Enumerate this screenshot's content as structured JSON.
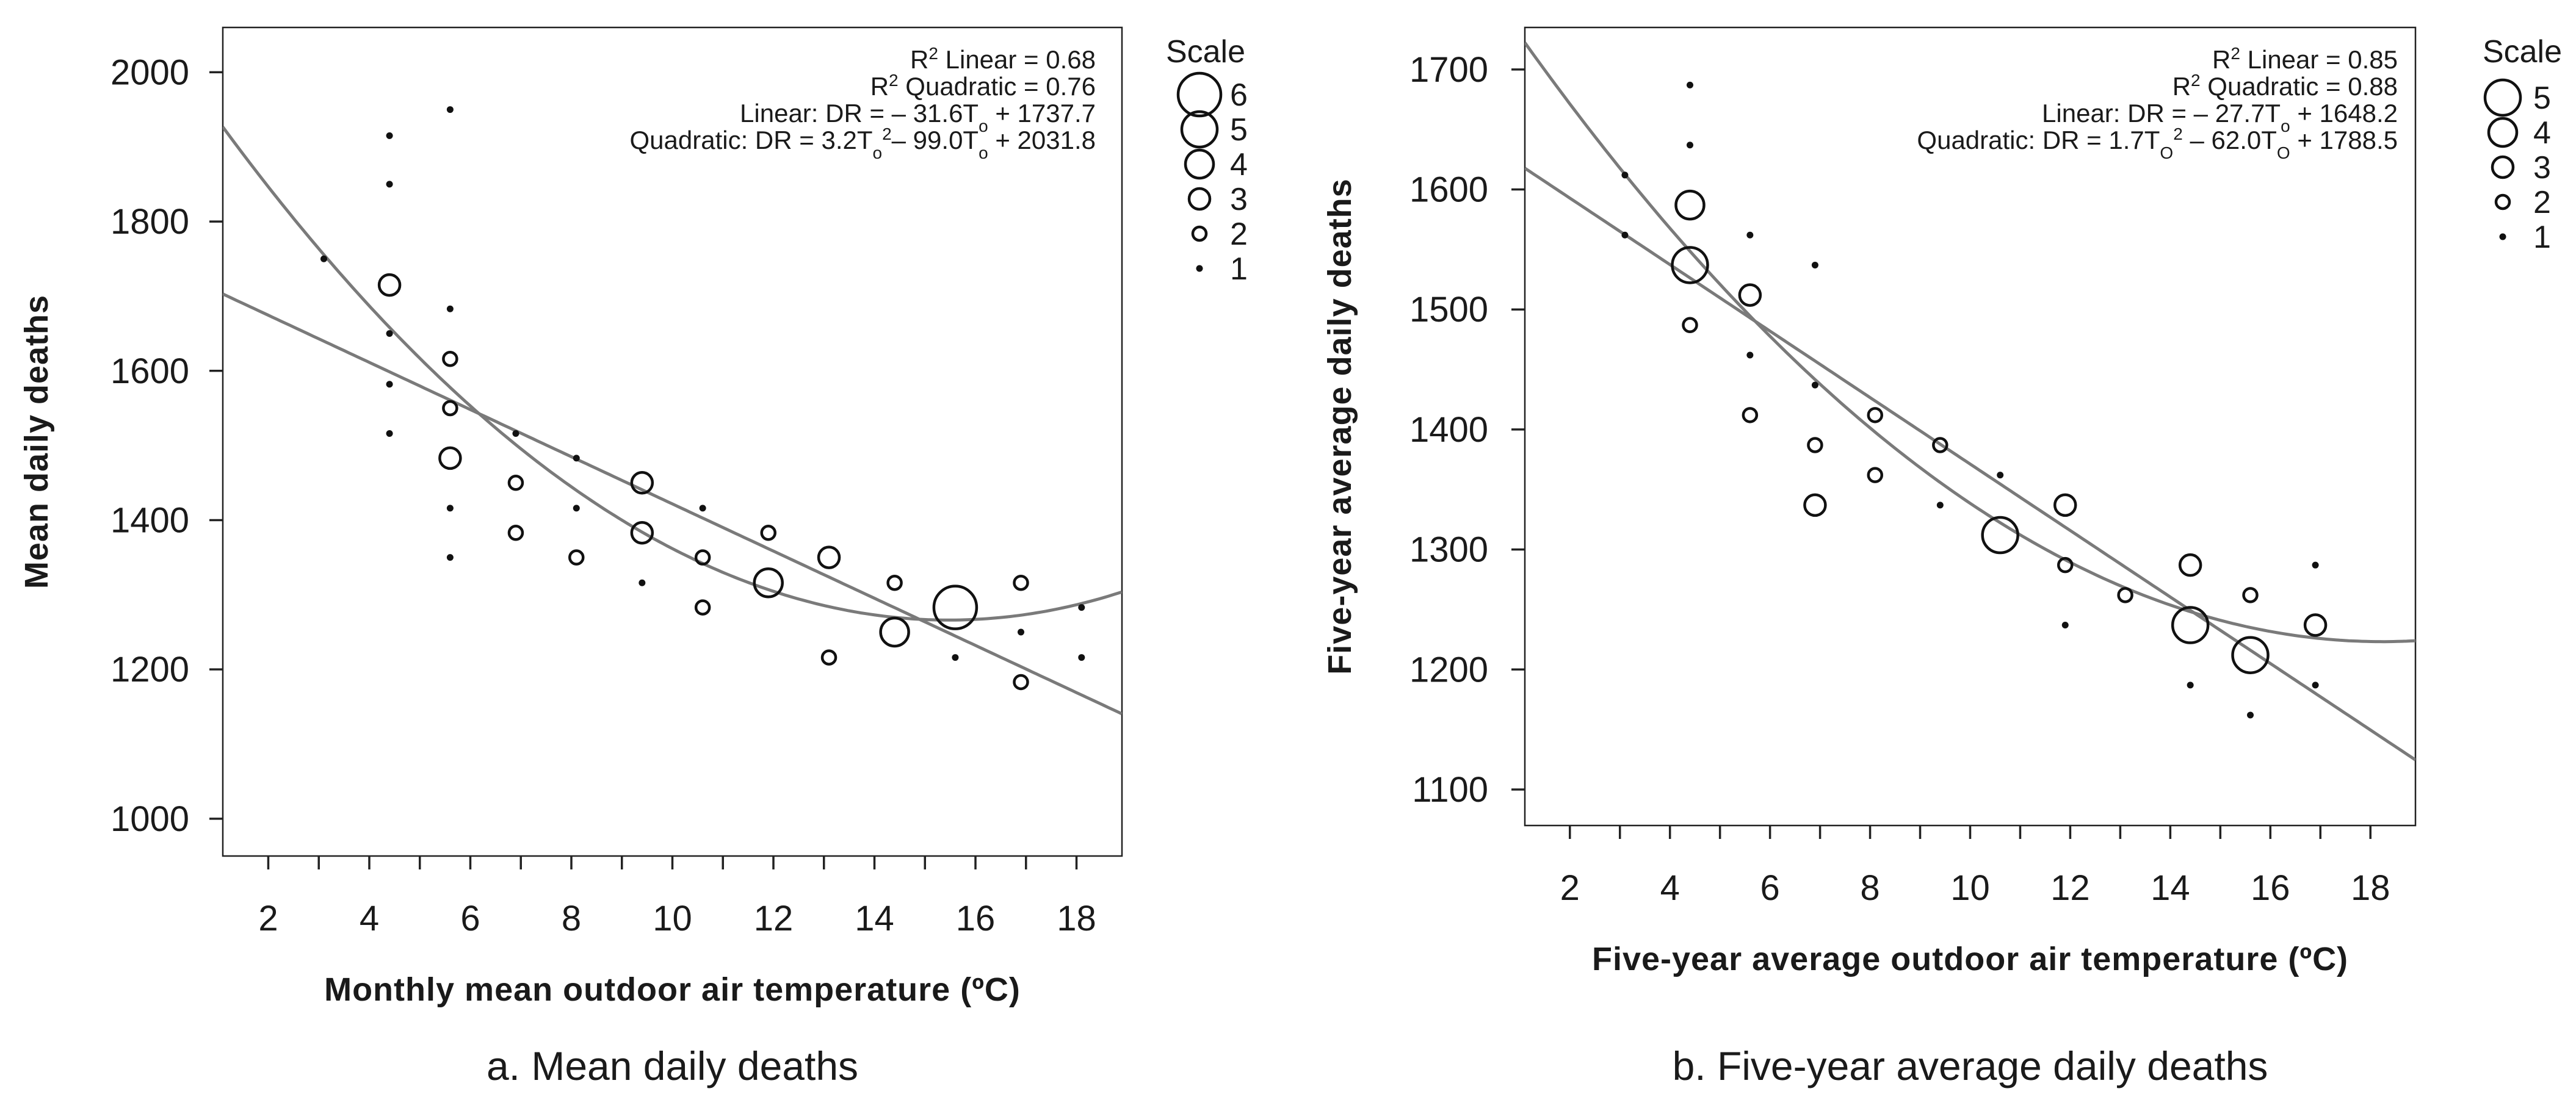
{
  "chart_data": [
    {
      "type": "scatter",
      "panel_caption": "a. Mean daily deaths",
      "xlabel": "Monthly mean outdoor air temperature (ºC)",
      "ylabel": "Mean daily deaths",
      "xlim": [
        1.1,
        18.9
      ],
      "ylim": [
        950,
        2060
      ],
      "x_ticks": [
        2,
        4,
        6,
        8,
        10,
        12,
        14,
        16,
        18
      ],
      "x_minor_ticks": [
        3,
        5,
        7,
        9,
        11,
        13,
        15,
        17
      ],
      "y_ticks": [
        1000,
        1200,
        1400,
        1600,
        1800,
        2000
      ],
      "annotations": [
        {
          "parts": [
            [
              "R",
              ""
            ],
            [
              "2",
              "sup"
            ],
            [
              " Linear = 0.68",
              ""
            ]
          ]
        },
        {
          "parts": [
            [
              "R",
              ""
            ],
            [
              "2",
              "sup"
            ],
            [
              " Quadratic = 0.76",
              ""
            ]
          ]
        },
        {
          "parts": [
            [
              "Linear: DR = – 31.6T",
              ""
            ],
            [
              "o",
              "sub"
            ],
            [
              " + 1737.7",
              ""
            ]
          ]
        },
        {
          "parts": [
            [
              "Quadratic: DR = 3.2T",
              ""
            ],
            [
              "o",
              "sub"
            ],
            [
              "2",
              "sup"
            ],
            [
              "– 99.0T",
              ""
            ],
            [
              "o",
              "sub"
            ],
            [
              " + 2031.8",
              ""
            ]
          ]
        }
      ],
      "fits": [
        {
          "name": "Linear",
          "coef": [
            1737.7,
            -31.6,
            0
          ],
          "color": "#7a7a7a"
        },
        {
          "name": "Quadratic",
          "coef": [
            2031.8,
            -99.0,
            3.2
          ],
          "color": "#7a7a7a"
        }
      ],
      "legend": {
        "title": "Scale",
        "position": "right",
        "entries": [
          {
            "label": "6",
            "scale": 6
          },
          {
            "label": "5",
            "scale": 5
          },
          {
            "label": "4",
            "scale": 4
          },
          {
            "label": "3",
            "scale": 3
          },
          {
            "label": "2",
            "scale": 2
          },
          {
            "label": "1",
            "scale": 1
          }
        ]
      },
      "points": [
        {
          "x": 3.1,
          "y": 1750,
          "scale": 1
        },
        {
          "x": 4.4,
          "y": 1915,
          "scale": 1
        },
        {
          "x": 4.4,
          "y": 1850,
          "scale": 1
        },
        {
          "x": 4.4,
          "y": 1715,
          "scale": 3
        },
        {
          "x": 4.4,
          "y": 1650,
          "scale": 1
        },
        {
          "x": 4.4,
          "y": 1582,
          "scale": 1
        },
        {
          "x": 4.4,
          "y": 1516,
          "scale": 1
        },
        {
          "x": 5.6,
          "y": 1950,
          "scale": 1
        },
        {
          "x": 5.6,
          "y": 1683,
          "scale": 1
        },
        {
          "x": 5.6,
          "y": 1616,
          "scale": 2
        },
        {
          "x": 5.6,
          "y": 1550,
          "scale": 2
        },
        {
          "x": 5.6,
          "y": 1483,
          "scale": 3
        },
        {
          "x": 5.6,
          "y": 1416,
          "scale": 1
        },
        {
          "x": 5.6,
          "y": 1350,
          "scale": 1
        },
        {
          "x": 6.9,
          "y": 1516,
          "scale": 1
        },
        {
          "x": 6.9,
          "y": 1450,
          "scale": 2
        },
        {
          "x": 6.9,
          "y": 1383,
          "scale": 2
        },
        {
          "x": 8.1,
          "y": 1483,
          "scale": 1
        },
        {
          "x": 8.1,
          "y": 1416,
          "scale": 1
        },
        {
          "x": 8.1,
          "y": 1350,
          "scale": 2
        },
        {
          "x": 9.4,
          "y": 1450,
          "scale": 3
        },
        {
          "x": 9.4,
          "y": 1383,
          "scale": 3
        },
        {
          "x": 9.4,
          "y": 1316,
          "scale": 1
        },
        {
          "x": 10.6,
          "y": 1416,
          "scale": 1
        },
        {
          "x": 10.6,
          "y": 1350,
          "scale": 2
        },
        {
          "x": 10.6,
          "y": 1283,
          "scale": 2
        },
        {
          "x": 11.9,
          "y": 1383,
          "scale": 2
        },
        {
          "x": 11.9,
          "y": 1316,
          "scale": 4
        },
        {
          "x": 13.1,
          "y": 1350,
          "scale": 3
        },
        {
          "x": 13.1,
          "y": 1216,
          "scale": 2
        },
        {
          "x": 14.4,
          "y": 1316,
          "scale": 2
        },
        {
          "x": 14.4,
          "y": 1250,
          "scale": 4
        },
        {
          "x": 15.6,
          "y": 1283,
          "scale": 6
        },
        {
          "x": 15.6,
          "y": 1216,
          "scale": 1
        },
        {
          "x": 16.9,
          "y": 1316,
          "scale": 2
        },
        {
          "x": 16.9,
          "y": 1250,
          "scale": 1
        },
        {
          "x": 16.9,
          "y": 1183,
          "scale": 2
        },
        {
          "x": 18.1,
          "y": 1283,
          "scale": 1
        },
        {
          "x": 18.1,
          "y": 1216,
          "scale": 1
        }
      ]
    },
    {
      "type": "scatter",
      "panel_caption": "b. Five-year average daily deaths",
      "xlabel": "Five-year average outdoor air temperature (ºC)",
      "ylabel": "Five-year average daily deaths",
      "xlim": [
        1.1,
        18.9
      ],
      "ylim": [
        1070,
        1735
      ],
      "x_ticks": [
        2,
        4,
        6,
        8,
        10,
        12,
        14,
        16,
        18
      ],
      "x_minor_ticks": [
        3,
        5,
        7,
        9,
        11,
        13,
        15,
        17
      ],
      "y_ticks": [
        1100,
        1200,
        1300,
        1400,
        1500,
        1600,
        1700
      ],
      "annotations": [
        {
          "parts": [
            [
              "R",
              ""
            ],
            [
              "2",
              "sup"
            ],
            [
              " Linear = 0.85",
              ""
            ]
          ]
        },
        {
          "parts": [
            [
              "R",
              ""
            ],
            [
              "2",
              "sup"
            ],
            [
              " Quadratic = 0.88",
              ""
            ]
          ]
        },
        {
          "parts": [
            [
              "Linear: DR = – 27.7T",
              ""
            ],
            [
              "o",
              "sub"
            ],
            [
              " + 1648.2",
              ""
            ]
          ]
        },
        {
          "parts": [
            [
              "Quadratic: DR = 1.7T",
              ""
            ],
            [
              "O",
              "sub"
            ],
            [
              "2",
              "sup"
            ],
            [
              " – 62.0T",
              ""
            ],
            [
              "O",
              "sub"
            ],
            [
              " + 1788.5",
              ""
            ]
          ]
        }
      ],
      "fits": [
        {
          "name": "Linear",
          "coef": [
            1648.2,
            -27.7,
            0
          ],
          "color": "#7a7a7a"
        },
        {
          "name": "Quadratic",
          "coef": [
            1788.5,
            -62.0,
            1.7
          ],
          "color": "#7a7a7a"
        }
      ],
      "legend": {
        "title": "Scale",
        "position": "right",
        "entries": [
          {
            "label": "5",
            "scale": 5
          },
          {
            "label": "4",
            "scale": 4
          },
          {
            "label": "3",
            "scale": 3
          },
          {
            "label": "2",
            "scale": 2
          },
          {
            "label": "1",
            "scale": 1
          }
        ]
      },
      "points": [
        {
          "x": 3.1,
          "y": 1612,
          "scale": 1
        },
        {
          "x": 3.1,
          "y": 1562,
          "scale": 1
        },
        {
          "x": 4.4,
          "y": 1687,
          "scale": 1
        },
        {
          "x": 4.4,
          "y": 1637,
          "scale": 1
        },
        {
          "x": 4.4,
          "y": 1587,
          "scale": 4
        },
        {
          "x": 4.4,
          "y": 1537,
          "scale": 5
        },
        {
          "x": 4.4,
          "y": 1487,
          "scale": 2
        },
        {
          "x": 5.6,
          "y": 1562,
          "scale": 1
        },
        {
          "x": 5.6,
          "y": 1512,
          "scale": 3
        },
        {
          "x": 5.6,
          "y": 1462,
          "scale": 1
        },
        {
          "x": 5.6,
          "y": 1412,
          "scale": 2
        },
        {
          "x": 6.9,
          "y": 1537,
          "scale": 1
        },
        {
          "x": 6.9,
          "y": 1437,
          "scale": 1
        },
        {
          "x": 6.9,
          "y": 1387,
          "scale": 2
        },
        {
          "x": 6.9,
          "y": 1337,
          "scale": 3
        },
        {
          "x": 8.1,
          "y": 1412,
          "scale": 2
        },
        {
          "x": 8.1,
          "y": 1362,
          "scale": 2
        },
        {
          "x": 9.4,
          "y": 1387,
          "scale": 2
        },
        {
          "x": 9.4,
          "y": 1337,
          "scale": 1
        },
        {
          "x": 10.6,
          "y": 1362,
          "scale": 1
        },
        {
          "x": 10.6,
          "y": 1312,
          "scale": 5
        },
        {
          "x": 11.9,
          "y": 1337,
          "scale": 3
        },
        {
          "x": 11.9,
          "y": 1287,
          "scale": 2
        },
        {
          "x": 11.9,
          "y": 1237,
          "scale": 1
        },
        {
          "x": 13.1,
          "y": 1262,
          "scale": 2
        },
        {
          "x": 14.4,
          "y": 1287,
          "scale": 3
        },
        {
          "x": 14.4,
          "y": 1237,
          "scale": 5
        },
        {
          "x": 14.4,
          "y": 1187,
          "scale": 1
        },
        {
          "x": 15.6,
          "y": 1262,
          "scale": 2
        },
        {
          "x": 15.6,
          "y": 1212,
          "scale": 5
        },
        {
          "x": 15.6,
          "y": 1162,
          "scale": 1
        },
        {
          "x": 16.9,
          "y": 1287,
          "scale": 1
        },
        {
          "x": 16.9,
          "y": 1237,
          "scale": 3
        },
        {
          "x": 16.9,
          "y": 1187,
          "scale": 1
        }
      ]
    }
  ]
}
